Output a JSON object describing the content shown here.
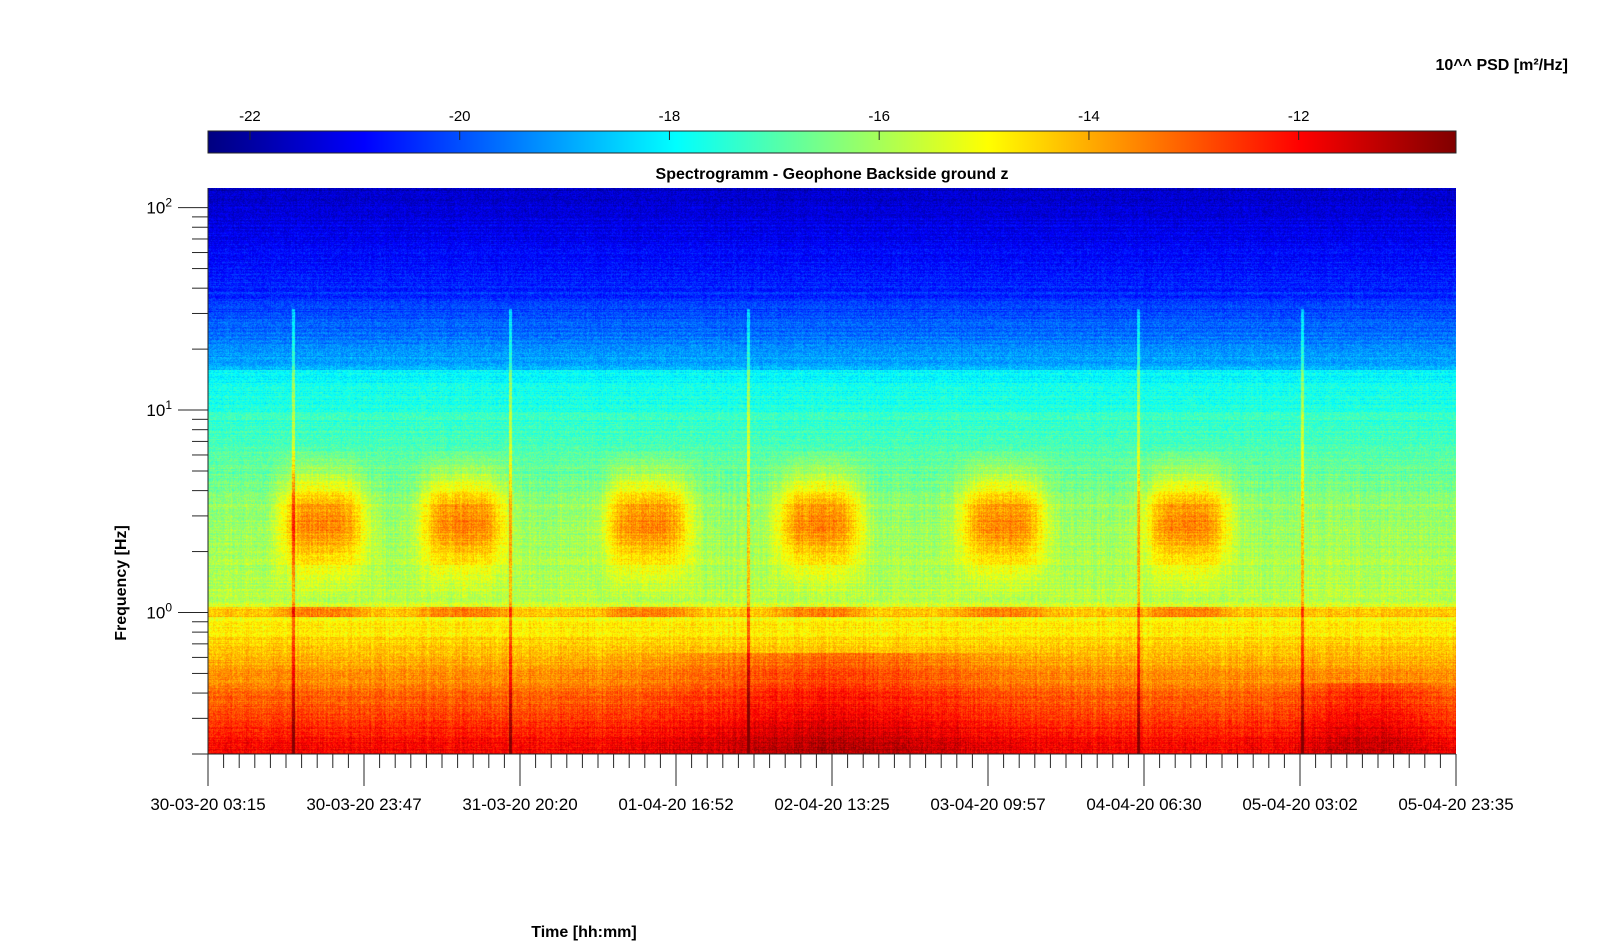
{
  "chart_data": {
    "type": "heatmap",
    "title": "Spectrogramm - Geophone Backside ground z",
    "xlabel": "Time [hh:mm]",
    "ylabel": "Frequency [Hz]",
    "x_axis": {
      "scale": "time",
      "tick_labels": [
        "30-03-20 03:15",
        "30-03-20 23:47",
        "31-03-20 20:20",
        "01-04-20 16:52",
        "02-04-20 13:25",
        "03-04-20 09:57",
        "04-04-20 06:30",
        "05-04-20 03:02",
        "05-04-20 23:35"
      ],
      "range": [
        "30-03-20 03:15",
        "05-04-20 23:35"
      ]
    },
    "y_axis": {
      "scale": "log",
      "range": [
        0.2,
        125
      ],
      "ticks": [
        {
          "value": 1,
          "base": "10",
          "exp": "0"
        },
        {
          "value": 10,
          "base": "10",
          "exp": "1"
        },
        {
          "value": 100,
          "base": "10",
          "exp": "2"
        }
      ]
    },
    "colorbar": {
      "label": "10^^ PSD [m²/Hz]",
      "colormap": "jet",
      "range": [
        -22.4,
        -10.5
      ],
      "tick_values": [
        -22,
        -20,
        -18,
        -16,
        -14,
        -12
      ],
      "tick_labels": [
        "-22",
        "-20",
        "-18",
        "-16",
        "-14",
        "-12"
      ],
      "placement": "top"
    },
    "grid": false,
    "features": {
      "day_bursts_hz_band": [
        1.5,
        5.0
      ],
      "day_burst_psd": -13.4,
      "day_burst_centers": [
        "30-03-20 13:45",
        "31-03-20 11:00",
        "01-04-20 09:40",
        "02-04-20 08:30",
        "03-04-20 08:10",
        "04-04-20 06:00"
      ],
      "line_at_hz": 1.0,
      "spikes": [
        "30-03-20 19:30",
        "31-03-20 19:00",
        "02-04-20 04:30",
        "04-04-20 05:00",
        "05-04-20 03:10"
      ],
      "low_freq_max_psd": -11
    }
  }
}
